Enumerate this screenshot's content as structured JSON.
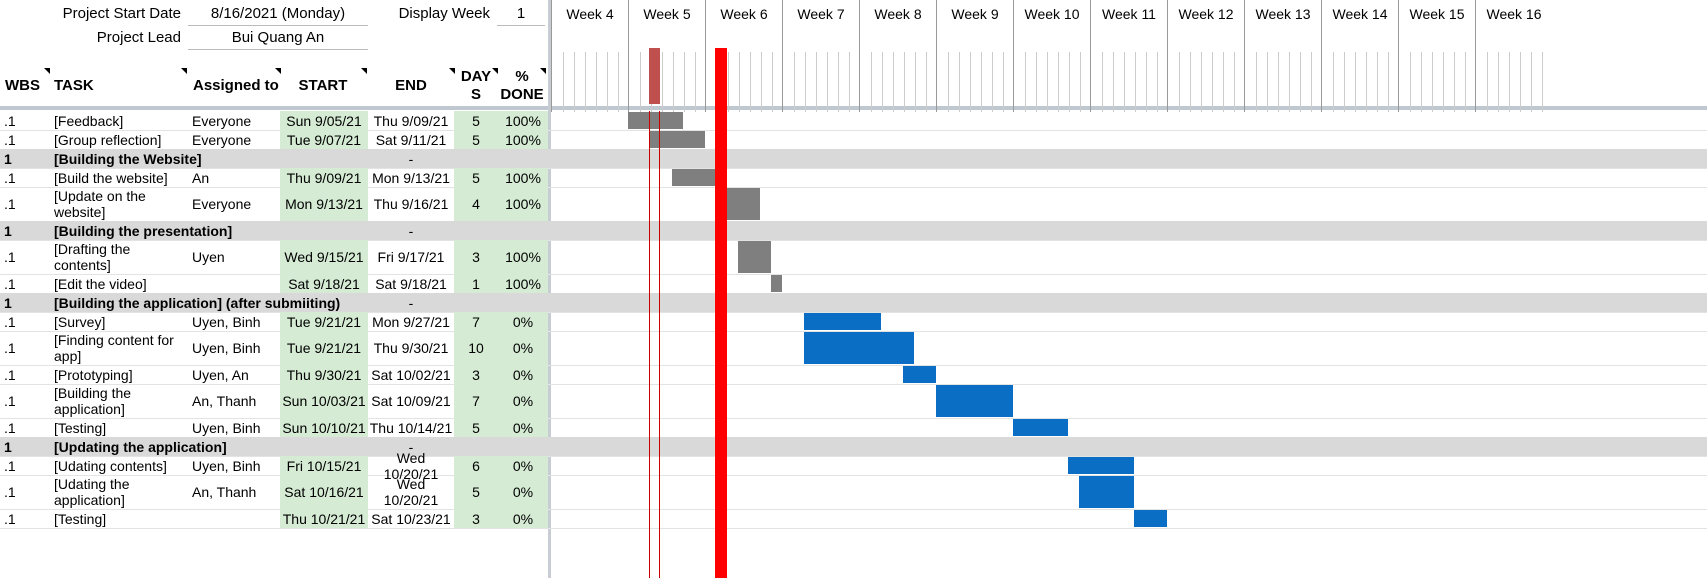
{
  "header": {
    "start_label": "Project Start Date",
    "start_value": "8/16/2021 (Monday)",
    "display_week_label": "Display Week",
    "display_week_value": "1",
    "lead_label": "Project Lead",
    "lead_value": "Bui Quang An"
  },
  "columns": {
    "wbs": "WBS",
    "task": "TASK",
    "assigned": "Assigned to",
    "start": "START",
    "end": "END",
    "days_1": "DAY",
    "days_2": "S",
    "done_1": "%",
    "done_2": "DONE"
  },
  "weeks": [
    "Week 4",
    "Week 5",
    "Week 6",
    "Week 7",
    "Week 8",
    "Week 9",
    "Week 10",
    "Week 11",
    "Week 12",
    "Week 13",
    "Week 14",
    "Week 15",
    "Week 16"
  ],
  "rows": [
    {
      "wbs": ".1",
      "task": "[Feedback]",
      "assigned": "Everyone",
      "start": "Sun 9/05/21",
      "end": "Thu 9/09/21",
      "days": "5",
      "done": "100%"
    },
    {
      "wbs": ".1",
      "task": "[Group reflection]",
      "assigned": "Everyone",
      "start": "Tue 9/07/21",
      "end": "Sat 9/11/21",
      "days": "5",
      "done": "100%"
    },
    {
      "wbs": "1",
      "task": "[Building the Website]",
      "section": true,
      "end": "-"
    },
    {
      "wbs": ".1",
      "task": "[Build the website]",
      "assigned": "An",
      "start": "Thu 9/09/21",
      "end": "Mon 9/13/21",
      "days": "5",
      "done": "100%"
    },
    {
      "wbs": ".1",
      "task": "[Update on the website]",
      "assigned": "Everyone",
      "start": "Mon 9/13/21",
      "end": "Thu 9/16/21",
      "days": "4",
      "done": "100%"
    },
    {
      "wbs": "1",
      "task": "[Building the presentation]",
      "section": true,
      "end": "-"
    },
    {
      "wbs": ".1",
      "task": "[Drafting the contents]",
      "assigned": "Uyen",
      "start": "Wed 9/15/21",
      "end": "Fri 9/17/21",
      "days": "3",
      "done": "100%"
    },
    {
      "wbs": ".1",
      "task": "[Edit the video]",
      "assigned": "",
      "start": "Sat 9/18/21",
      "end": "Sat 9/18/21",
      "days": "1",
      "done": "100%"
    },
    {
      "wbs": "1",
      "task": "[Building the application] (after submiiting)",
      "section": true,
      "end": "-"
    },
    {
      "wbs": ".1",
      "task": "[Survey]",
      "assigned": "Uyen, Binh",
      "start": "Tue 9/21/21",
      "end": "Mon 9/27/21",
      "days": "7",
      "done": "0%"
    },
    {
      "wbs": ".1",
      "task": "[Finding content for app]",
      "assigned": "Uyen, Binh",
      "start": "Tue 9/21/21",
      "end": "Thu 9/30/21",
      "days": "10",
      "done": "0%"
    },
    {
      "wbs": ".1",
      "task": "[Prototyping]",
      "assigned": "Uyen, An",
      "start": "Thu 9/30/21",
      "end": "Sat 10/02/21",
      "days": "3",
      "done": "0%"
    },
    {
      "wbs": ".1",
      "task": "[Building the application]",
      "assigned": "An, Thanh",
      "start": "Sun 10/03/21",
      "end": "Sat 10/09/21",
      "days": "7",
      "done": "0%"
    },
    {
      "wbs": ".1",
      "task": "[Testing]",
      "assigned": "Uyen, Binh",
      "start": "Sun 10/10/21",
      "end": "Thu 10/14/21",
      "days": "5",
      "done": "0%"
    },
    {
      "wbs": "1",
      "task": "[Updating the application]",
      "section": true,
      "end": "-"
    },
    {
      "wbs": ".1",
      "task": "[Udating contents]",
      "assigned": "Uyen, Binh",
      "start": "Fri 10/15/21",
      "end": "Wed 10/20/21",
      "days": "6",
      "done": "0%"
    },
    {
      "wbs": ".1",
      "task": "[Udating the application]",
      "assigned": "An, Thanh",
      "start": "Sat 10/16/21",
      "end": "Wed 10/20/21",
      "days": "5",
      "done": "0%"
    },
    {
      "wbs": ".1",
      "task": "[Testing]",
      "assigned": "",
      "start": "Thu 10/21/21",
      "end": "Sat 10/23/21",
      "days": "3",
      "done": "0%"
    }
  ],
  "colors": {
    "done_bar": "#7f7f7f",
    "todo_bar": "#0b6ec5",
    "today_marker": "#ff0000",
    "section_bg": "#d9d9d9",
    "date_cell_bg": "#d5ebd4"
  }
}
